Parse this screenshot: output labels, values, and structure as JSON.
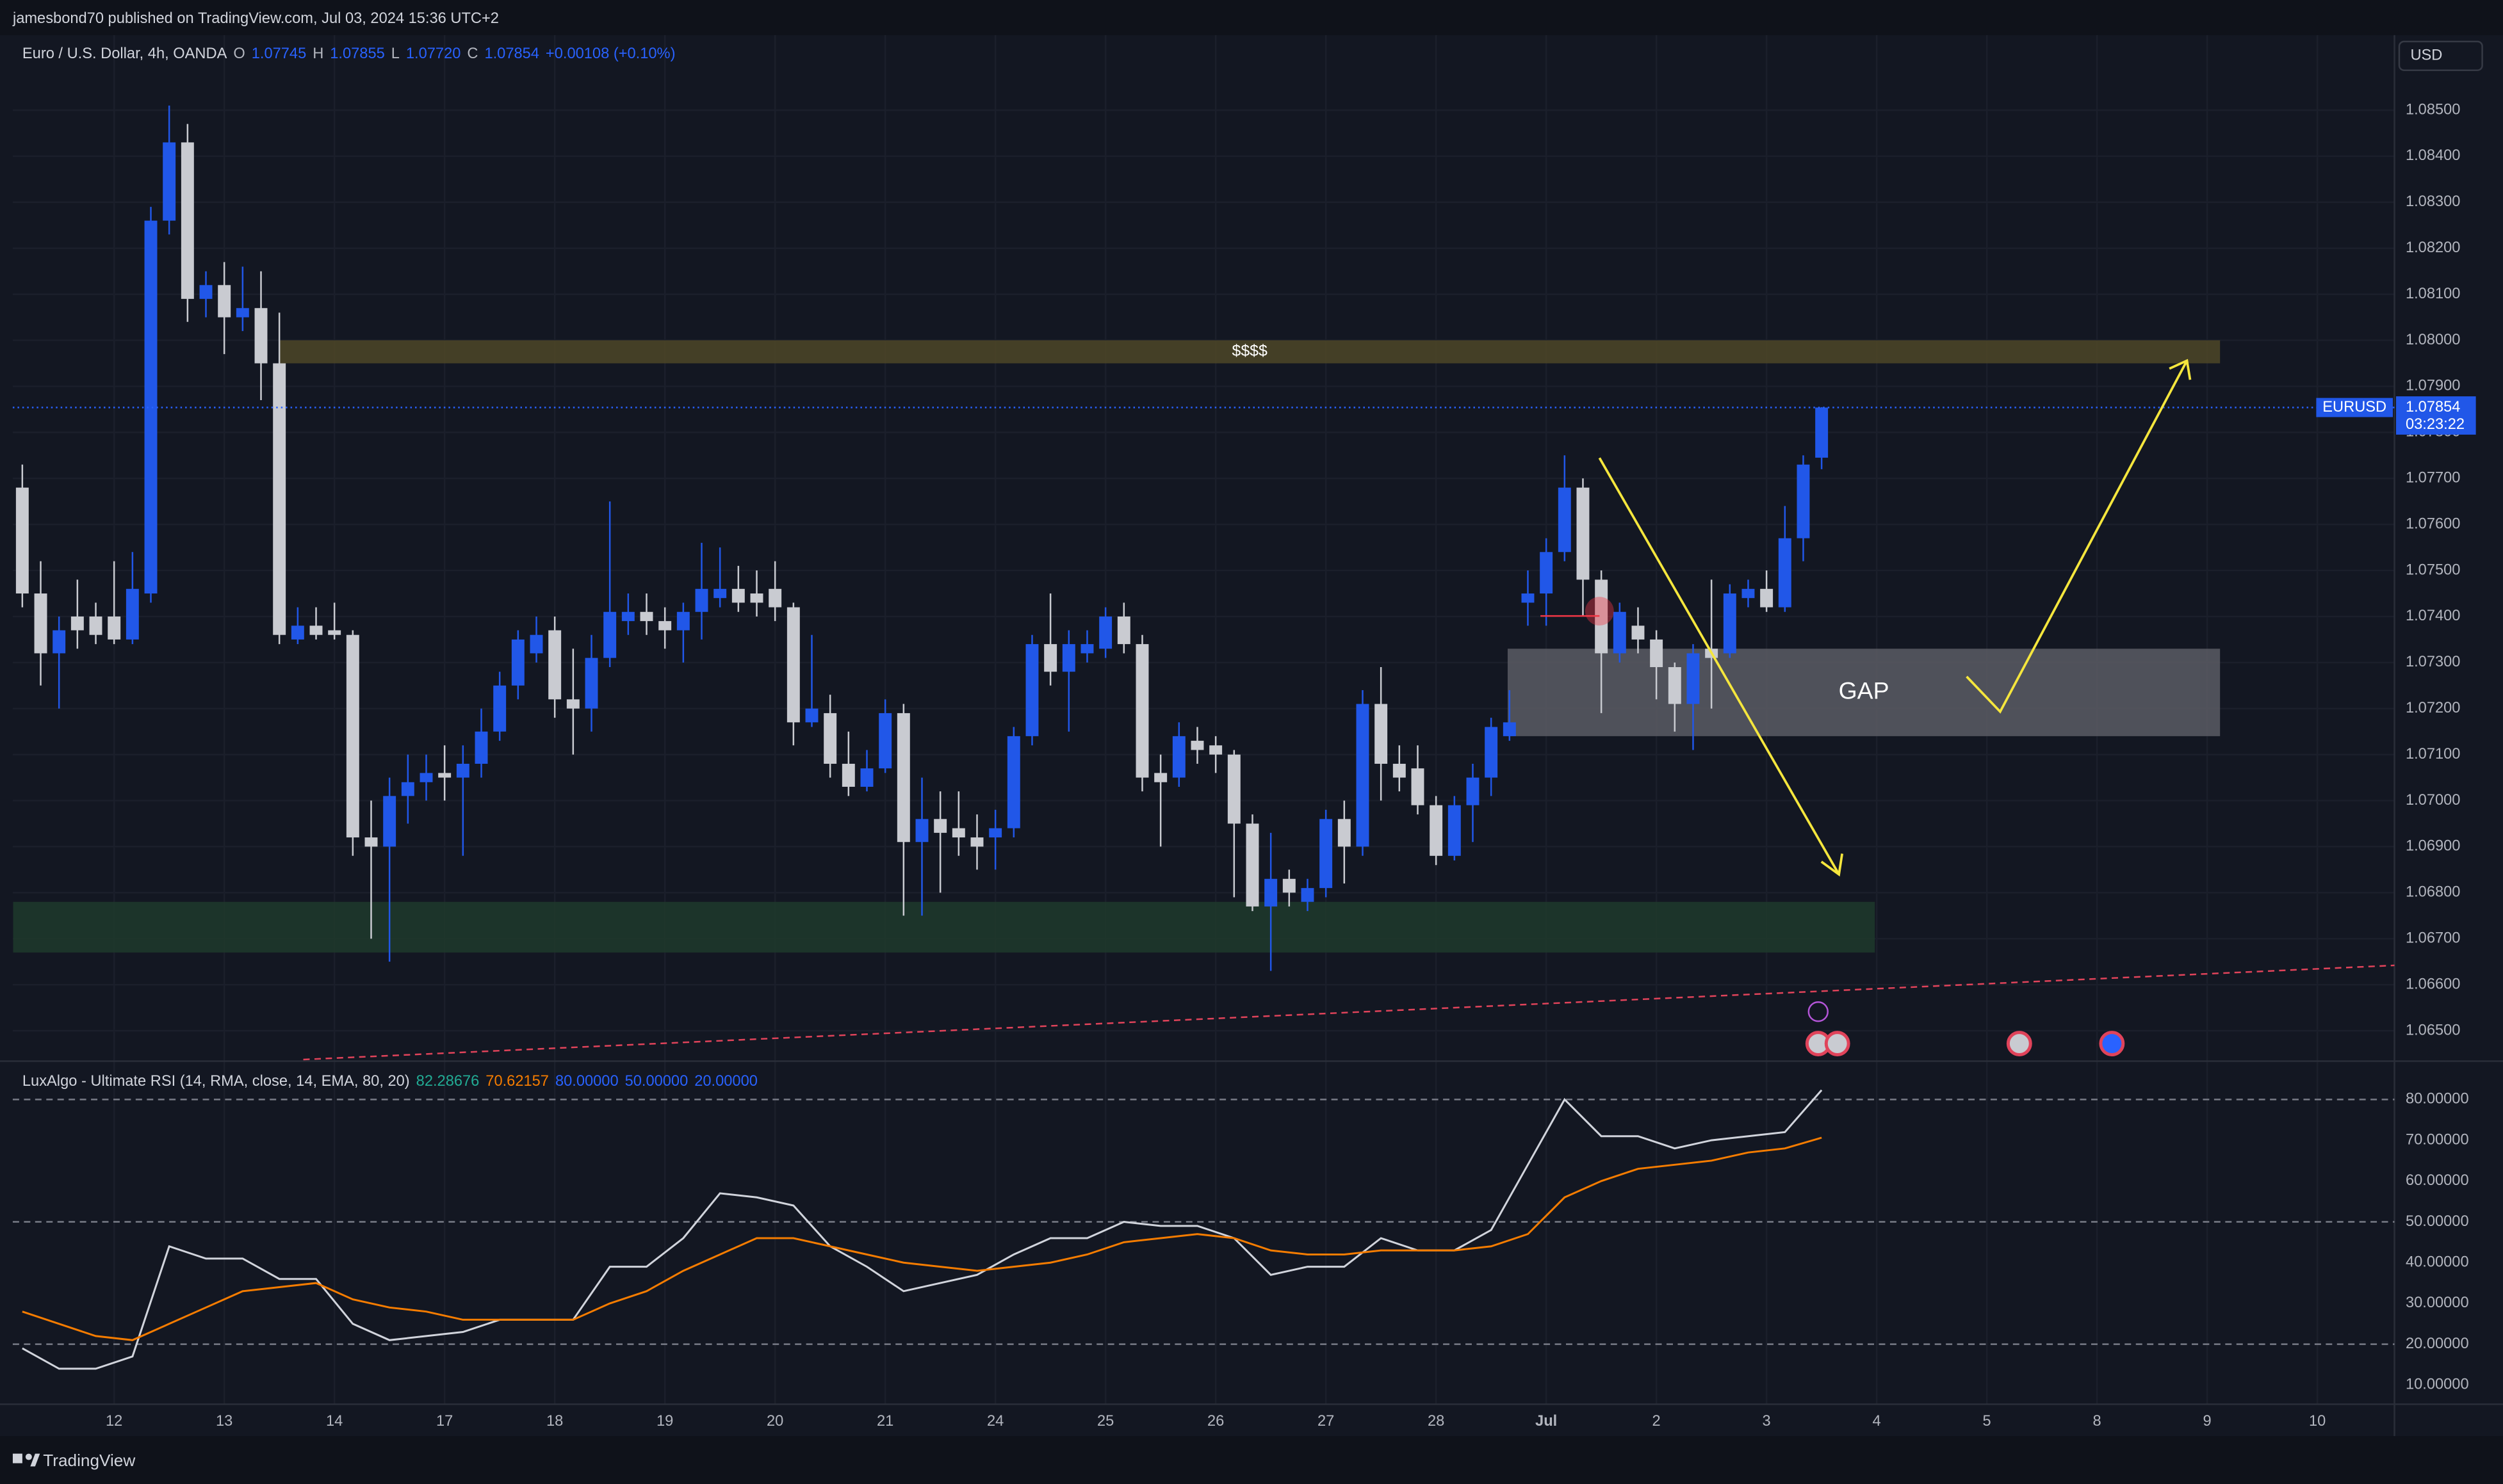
{
  "header": {
    "published": "jamesbond70 published on TradingView.com, Jul 03, 2024 15:36 UTC+2",
    "symbol": "Euro / U.S. Dollar, 4h, OANDA",
    "ohlc": [
      {
        "key": "O",
        "value": "1.07745"
      },
      {
        "key": "H",
        "value": "1.07855"
      },
      {
        "key": "L",
        "value": "1.07720"
      },
      {
        "key": "C",
        "value": "1.07854"
      }
    ],
    "change": "+0.00108 (+0.10%)",
    "currency": "USD",
    "price_tag": {
      "symbol": "EURUSD",
      "price": "1.07854",
      "countdown": "03:23:22"
    },
    "brand": "TradingView"
  },
  "chart_data": [
    {
      "type": "candlestick",
      "up_color": "#2157e8",
      "down_color": "#c9cbd1",
      "grid": true,
      "xlim": [
        -0.52,
        129.2
      ],
      "ylim": [
        1.06434,
        1.08663
      ],
      "xticks": [
        {
          "value": 5,
          "label": "12"
        },
        {
          "value": 11,
          "label": "13"
        },
        {
          "value": 17,
          "label": "14"
        },
        {
          "value": 23,
          "label": "17"
        },
        {
          "value": 29,
          "label": "18"
        },
        {
          "value": 35,
          "label": "19"
        },
        {
          "value": 41,
          "label": "20"
        },
        {
          "value": 47,
          "label": "21"
        },
        {
          "value": 53,
          "label": "24"
        },
        {
          "value": 59,
          "label": "25"
        },
        {
          "value": 65,
          "label": "26"
        },
        {
          "value": 71,
          "label": "27"
        },
        {
          "value": 77,
          "label": "28"
        },
        {
          "value": 83,
          "label": "Jul"
        },
        {
          "value": 89,
          "label": "2"
        },
        {
          "value": 95,
          "label": "3"
        },
        {
          "value": 101,
          "label": "4"
        },
        {
          "value": 107,
          "label": "5"
        },
        {
          "value": 113,
          "label": "8"
        },
        {
          "value": 119,
          "label": "9"
        },
        {
          "value": 125,
          "label": "10"
        }
      ],
      "yticks": [
        {
          "value": 1.065,
          "label": "1.06500"
        },
        {
          "value": 1.066,
          "label": "1.06600"
        },
        {
          "value": 1.067,
          "label": "1.06700"
        },
        {
          "value": 1.068,
          "label": "1.06800"
        },
        {
          "value": 1.069,
          "label": "1.06900"
        },
        {
          "value": 1.07,
          "label": "1.07000"
        },
        {
          "value": 1.071,
          "label": "1.07100"
        },
        {
          "value": 1.072,
          "label": "1.07200"
        },
        {
          "value": 1.073,
          "label": "1.07300"
        },
        {
          "value": 1.074,
          "label": "1.07400"
        },
        {
          "value": 1.075,
          "label": "1.07500"
        },
        {
          "value": 1.076,
          "label": "1.07600"
        },
        {
          "value": 1.077,
          "label": "1.07700"
        },
        {
          "value": 1.078,
          "label": "1.07800"
        },
        {
          "value": 1.079,
          "label": "1.07900"
        },
        {
          "value": 1.08,
          "label": "1.08000"
        },
        {
          "value": 1.081,
          "label": "1.08100"
        },
        {
          "value": 1.082,
          "label": "1.08200"
        },
        {
          "value": 1.083,
          "label": "1.08300"
        },
        {
          "value": 1.084,
          "label": "1.08400"
        },
        {
          "value": 1.085,
          "label": "1.08500"
        }
      ],
      "open": [
        1.0768,
        1.0745,
        1.0732,
        1.074,
        1.074,
        1.074,
        1.0735,
        1.0745,
        1.0826,
        1.0843,
        1.0809,
        1.0812,
        1.0805,
        1.0807,
        1.0795,
        1.0735,
        1.0738,
        1.0737,
        1.0736,
        1.0692,
        1.069,
        1.0701,
        1.0704,
        1.0706,
        1.0705,
        1.0708,
        1.0715,
        1.0725,
        1.0732,
        1.0737,
        1.0722,
        1.072,
        1.0731,
        1.0739,
        1.0741,
        1.0739,
        1.0737,
        1.0741,
        1.0744,
        1.0746,
        1.0745,
        1.0746,
        1.0742,
        1.0717,
        1.0719,
        1.0708,
        1.0703,
        1.0707,
        1.0719,
        1.0691,
        1.0696,
        1.0694,
        1.0692,
        1.0692,
        1.0694,
        1.0714,
        1.0734,
        1.0728,
        1.0732,
        1.0733,
        1.074,
        1.0734,
        1.0706,
        1.0705,
        1.0713,
        1.0712,
        1.071,
        1.0695,
        1.0677,
        1.0683,
        1.0678,
        1.0681,
        1.0696,
        1.069,
        1.0721,
        1.0708,
        1.0707,
        1.0699,
        1.0688,
        1.0699,
        1.0705,
        1.0714,
        1.0743,
        1.0745,
        1.0754,
        1.0768,
        1.0748,
        1.0732,
        1.0738,
        1.0735,
        1.0729,
        1.0721,
        1.0733,
        1.0732,
        1.0744,
        1.0746,
        1.0742,
        1.0757,
        1.07745
      ],
      "high": [
        1.0773,
        1.0752,
        1.074,
        1.0748,
        1.0743,
        1.0752,
        1.0754,
        1.0829,
        1.0851,
        1.0847,
        1.0815,
        1.0817,
        1.0816,
        1.0815,
        1.0806,
        1.0742,
        1.0742,
        1.0743,
        1.0737,
        1.07,
        1.0705,
        1.071,
        1.071,
        1.0712,
        1.0712,
        1.072,
        1.0728,
        1.0737,
        1.074,
        1.074,
        1.0733,
        1.0736,
        1.0765,
        1.0745,
        1.0745,
        1.0742,
        1.0743,
        1.0756,
        1.0755,
        1.0751,
        1.075,
        1.0752,
        1.0743,
        1.0736,
        1.0723,
        1.0715,
        1.0711,
        1.0722,
        1.0721,
        1.0705,
        1.0702,
        1.0702,
        1.0697,
        1.0698,
        1.0716,
        1.0736,
        1.0745,
        1.0737,
        1.0737,
        1.0742,
        1.0743,
        1.0736,
        1.071,
        1.0717,
        1.0716,
        1.0714,
        1.0711,
        1.0697,
        1.0693,
        1.0685,
        1.0683,
        1.0698,
        1.07,
        1.0724,
        1.0729,
        1.0712,
        1.0712,
        1.0701,
        1.0701,
        1.0708,
        1.0718,
        1.0724,
        1.075,
        1.0757,
        1.0775,
        1.077,
        1.075,
        1.0743,
        1.0742,
        1.0737,
        1.073,
        1.0734,
        1.0748,
        1.0747,
        1.0748,
        1.075,
        1.0764,
        1.0775,
        1.07855
      ],
      "low": [
        1.0742,
        1.0725,
        1.072,
        1.0733,
        1.0734,
        1.0734,
        1.0734,
        1.0743,
        1.0823,
        1.0804,
        1.0805,
        1.0797,
        1.0802,
        1.0787,
        1.0734,
        1.0734,
        1.0735,
        1.0735,
        1.0688,
        1.067,
        1.0665,
        1.0695,
        1.07,
        1.07,
        1.0688,
        1.0705,
        1.0713,
        1.0722,
        1.073,
        1.0718,
        1.071,
        1.0715,
        1.0729,
        1.0736,
        1.0736,
        1.0733,
        1.073,
        1.0735,
        1.0742,
        1.0741,
        1.074,
        1.0739,
        1.0712,
        1.0716,
        1.0705,
        1.0701,
        1.0702,
        1.0706,
        1.0675,
        1.0675,
        1.068,
        1.0688,
        1.0685,
        1.0685,
        1.0692,
        1.0712,
        1.0725,
        1.0715,
        1.073,
        1.0731,
        1.0732,
        1.0702,
        1.069,
        1.0703,
        1.0708,
        1.0706,
        1.0679,
        1.0676,
        1.0663,
        1.0677,
        1.0676,
        1.0679,
        1.0682,
        1.0688,
        1.07,
        1.0702,
        1.0697,
        1.0686,
        1.0687,
        1.0691,
        1.0701,
        1.0713,
        1.0738,
        1.0738,
        1.0752,
        1.074,
        1.0719,
        1.073,
        1.0732,
        1.0722,
        1.0715,
        1.0711,
        1.072,
        1.0731,
        1.0742,
        1.0741,
        1.0741,
        1.0752,
        1.0772
      ],
      "close": [
        1.0745,
        1.0732,
        1.0737,
        1.0737,
        1.0736,
        1.0735,
        1.0746,
        1.0826,
        1.0843,
        1.0809,
        1.0812,
        1.0805,
        1.0807,
        1.0795,
        1.0736,
        1.0738,
        1.0736,
        1.0736,
        1.0692,
        1.069,
        1.0701,
        1.0704,
        1.0706,
        1.0705,
        1.0708,
        1.0715,
        1.0725,
        1.0735,
        1.0736,
        1.0722,
        1.072,
        1.0731,
        1.0741,
        1.0741,
        1.0739,
        1.0737,
        1.0741,
        1.0746,
        1.0746,
        1.0743,
        1.0743,
        1.0742,
        1.0717,
        1.072,
        1.0708,
        1.0703,
        1.0707,
        1.0719,
        1.0691,
        1.0696,
        1.0693,
        1.0692,
        1.069,
        1.0694,
        1.0714,
        1.0734,
        1.0728,
        1.0734,
        1.0734,
        1.074,
        1.0734,
        1.0705,
        1.0704,
        1.0714,
        1.0711,
        1.071,
        1.0695,
        1.0677,
        1.0683,
        1.068,
        1.0681,
        1.0696,
        1.069,
        1.0721,
        1.0708,
        1.0705,
        1.0699,
        1.0688,
        1.0699,
        1.0705,
        1.0716,
        1.0717,
        1.0745,
        1.0754,
        1.0768,
        1.0748,
        1.0732,
        1.0741,
        1.0735,
        1.0729,
        1.0721,
        1.0732,
        1.0731,
        1.0745,
        1.0746,
        1.0742,
        1.0757,
        1.0773,
        1.07854
      ],
      "zones": [
        {
          "label": "$$$$",
          "x": [
            14,
            119.7
          ],
          "y": [
            1.0795,
            1.08
          ],
          "color": "#4d4627"
        },
        {
          "x": [
            -0.5,
            100.9
          ],
          "y": [
            1.0667,
            1.0678
          ],
          "color": "#1f3a2c"
        },
        {
          "label": "GAP",
          "x": [
            80.9,
            119.7
          ],
          "y": [
            1.0714,
            1.0733
          ],
          "color": "#5a5c64"
        }
      ]
    },
    {
      "type": "line",
      "title": "LuxAlgo - Ultimate RSI (14, RMA, close, 14, EMA, 80, 20)",
      "xlim": [
        -0.52,
        129.2
      ],
      "ylim": [
        5.3,
        89.4
      ],
      "yticks": [
        {
          "value": 80,
          "label": "80.00000"
        },
        {
          "value": 70,
          "label": "70.00000"
        },
        {
          "value": 60,
          "label": "60.00000"
        },
        {
          "value": 50,
          "label": "50.00000"
        },
        {
          "value": 40,
          "label": "40.00000"
        },
        {
          "value": 30,
          "label": "30.00000"
        },
        {
          "value": 20,
          "label": "20.00000"
        },
        {
          "value": 10,
          "label": "10.00000"
        }
      ],
      "levels": [
        80,
        50,
        20
      ],
      "legend": [
        {
          "label": "82.28676",
          "color": "#22ab94"
        },
        {
          "label": "70.62157",
          "color": "#f57c00"
        },
        {
          "label": "80.00000",
          "color": "#2962ff"
        },
        {
          "label": "50.00000",
          "color": "#2962ff"
        },
        {
          "label": "20.00000",
          "color": "#2962ff"
        }
      ],
      "x": [
        0,
        2,
        4,
        6,
        8,
        10,
        12,
        14,
        16,
        18,
        20,
        22,
        24,
        26,
        28,
        30,
        32,
        34,
        36,
        38,
        40,
        42,
        44,
        46,
        48,
        50,
        52,
        54,
        56,
        58,
        60,
        62,
        64,
        66,
        68,
        70,
        72,
        74,
        76,
        78,
        80,
        82,
        84,
        86,
        88,
        90,
        92,
        94,
        96,
        98
      ],
      "series": [
        {
          "color": "#d1d4dc",
          "values": [
            19,
            14,
            14,
            17,
            44,
            41,
            41,
            36,
            36,
            25,
            21,
            22,
            23,
            26,
            26,
            26,
            39,
            39,
            46,
            57,
            56,
            54,
            44,
            39,
            33,
            35,
            37,
            42,
            46,
            46,
            50,
            49,
            49,
            46,
            37,
            39,
            39,
            46,
            43,
            43,
            48,
            64,
            80,
            71,
            71,
            68,
            70,
            71,
            72,
            82.28676
          ]
        },
        {
          "color": "#f57c00",
          "values": [
            28,
            25,
            22,
            21,
            25,
            29,
            33,
            34,
            35,
            31,
            29,
            28,
            26,
            26,
            26,
            26,
            30,
            33,
            38,
            42,
            46,
            46,
            44,
            42,
            40,
            39,
            38,
            39,
            40,
            42,
            45,
            46,
            47,
            46,
            43,
            42,
            42,
            43,
            43,
            43,
            44,
            47,
            56,
            60,
            63,
            64,
            65,
            67,
            68,
            70.62157
          ]
        }
      ]
    }
  ]
}
